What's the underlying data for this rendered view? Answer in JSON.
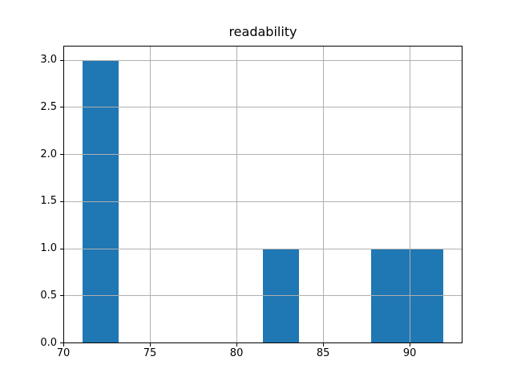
{
  "chart_data": {
    "type": "bar",
    "chart_kind": "histogram",
    "title": "readability",
    "xlabel": "",
    "ylabel": "",
    "xlim": [
      70,
      93
    ],
    "ylim": [
      0,
      3.15
    ],
    "xticks": [
      70,
      75,
      80,
      85,
      90
    ],
    "xtick_labels": [
      "70",
      "75",
      "80",
      "85",
      "90"
    ],
    "yticks": [
      0.0,
      0.5,
      1.0,
      1.5,
      2.0,
      2.5,
      3.0
    ],
    "ytick_labels": [
      "0.0",
      "0.5",
      "1.0",
      "1.5",
      "2.0",
      "2.5",
      "3.0"
    ],
    "bin_edges": [
      71.1,
      73.18,
      75.26,
      77.34,
      79.42,
      81.5,
      83.58,
      85.66,
      87.74,
      89.82,
      91.9
    ],
    "counts": [
      3,
      0,
      0,
      0,
      0,
      1,
      0,
      0,
      1,
      1
    ],
    "grid": true,
    "legend": false,
    "colors": {
      "bar": "#1f77b4",
      "grid": "#b0b0b0",
      "spine": "#000000",
      "text": "#000000",
      "background": "#ffffff"
    }
  }
}
